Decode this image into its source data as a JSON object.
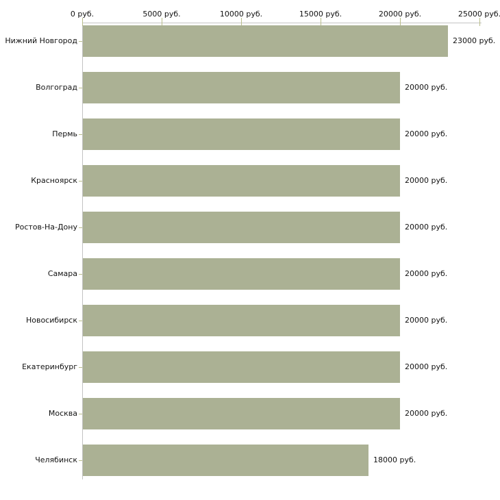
{
  "chart_data": {
    "type": "bar",
    "orientation": "horizontal",
    "title": "",
    "xlabel": "",
    "ylabel": "",
    "categories": [
      "Нижний Новгород",
      "Волгоград",
      "Пермь",
      "Красноярск",
      "Ростов-На-Дону",
      "Самара",
      "Новосибирск",
      "Екатеринбург",
      "Москва",
      "Челябинск"
    ],
    "values": [
      23000,
      20000,
      20000,
      20000,
      20000,
      20000,
      20000,
      20000,
      20000,
      18000
    ],
    "value_labels": [
      "23000 руб.",
      "20000 руб.",
      "20000 руб.",
      "20000 руб.",
      "20000 руб.",
      "20000 руб.",
      "20000 руб.",
      "20000 руб.",
      "20000 руб.",
      "18000 руб."
    ],
    "xlim": [
      0,
      25000
    ],
    "x_ticks": [
      0,
      5000,
      10000,
      15000,
      20000,
      25000
    ],
    "x_tick_labels": [
      "0 руб.",
      "5000 руб.",
      "10000 руб.",
      "15000 руб.",
      "20000 руб.",
      "25000 руб."
    ],
    "axis_position": "top",
    "grid": false,
    "legend": false,
    "colors": {
      "bar": "#abb194",
      "axis_line": "#c3c3c3",
      "tick": "#b9bd8a",
      "text": "#111111",
      "background": "#ffffff"
    }
  }
}
